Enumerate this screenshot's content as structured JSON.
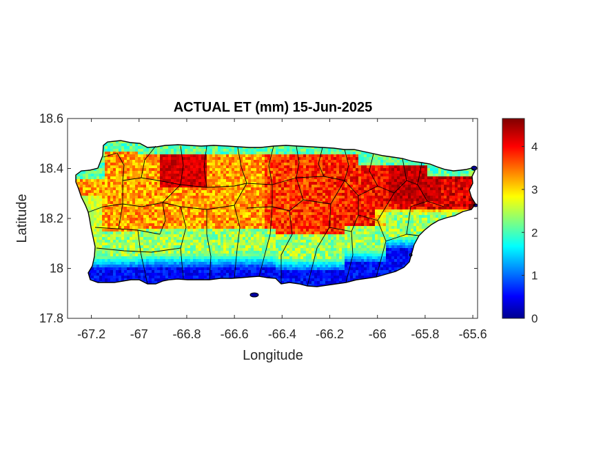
{
  "chart_data": {
    "type": "heatmap",
    "title": "ACTUAL ET (mm) 15-Jun-2025",
    "xlabel": "Longitude",
    "ylabel": "Latitude",
    "xlim": [
      -67.3,
      -65.58
    ],
    "ylim": [
      17.8,
      18.6
    ],
    "xticks": [
      -67.2,
      -67,
      -66.8,
      -66.6,
      -66.4,
      -66.2,
      -66,
      -65.8,
      -65.6
    ],
    "xtick_labels": [
      "-67.2",
      "-67",
      "-66.8",
      "-66.6",
      "-66.4",
      "-66.2",
      "-66",
      "-65.8",
      "-65.6"
    ],
    "yticks": [
      17.8,
      18,
      18.2,
      18.4,
      18.6
    ],
    "ytick_labels": [
      "17.8",
      "18",
      "18.2",
      "18.4",
      "18.6"
    ],
    "colormap": "jet",
    "colorbar": {
      "range": [
        0,
        4.65
      ],
      "ticks": [
        0,
        1,
        2,
        3,
        4
      ],
      "tick_labels": [
        "0",
        "1",
        "2",
        "3",
        "4"
      ]
    },
    "grid": false,
    "region": "Puerto Rico",
    "value_pattern": {
      "south_coast_mm": 0.3,
      "south_foothills_mm": 2.0,
      "central_mm": 3.2,
      "north_and_east_mm": 4.0,
      "northeast_peak_mm": 4.6,
      "north_coast_strip_mm": 1.8
    }
  }
}
